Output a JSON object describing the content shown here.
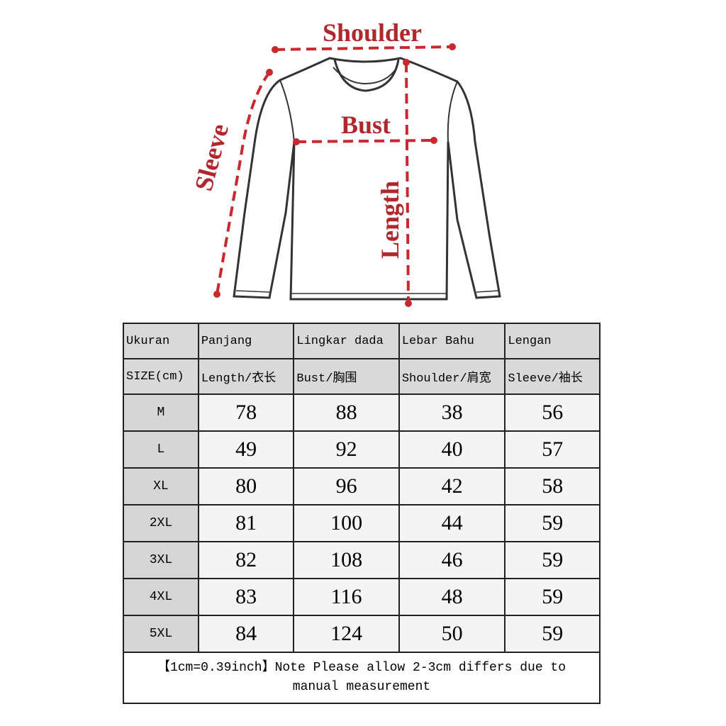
{
  "diagram": {
    "labels": {
      "shoulder": "Shoulder",
      "bust": "Bust",
      "sleeve": "Sleeve",
      "length": "Length"
    },
    "accent_color": "#b0282e"
  },
  "table": {
    "header_row1": [
      "Ukuran",
      "Panjang",
      "Lingkar dada",
      "Lebar Bahu",
      "Lengan"
    ],
    "header_row2": [
      "SIZE(cm)",
      "Length/衣长",
      "Bust/胸围",
      "Shoulder/肩宽",
      "Sleeve/袖长"
    ],
    "rows": [
      [
        "M",
        "78",
        "88",
        "38",
        "56"
      ],
      [
        "L",
        "49",
        "92",
        "40",
        "57"
      ],
      [
        "XL",
        "80",
        "96",
        "42",
        "58"
      ],
      [
        "2XL",
        "81",
        "100",
        "44",
        "59"
      ],
      [
        "3XL",
        "82",
        "108",
        "46",
        "59"
      ],
      [
        "4XL",
        "83",
        "116",
        "48",
        "59"
      ],
      [
        "5XL",
        "84",
        "124",
        "50",
        "59"
      ]
    ],
    "note": "【1cm=0.39inch】Note Please allow 2-3cm differs due to manual measurement"
  }
}
